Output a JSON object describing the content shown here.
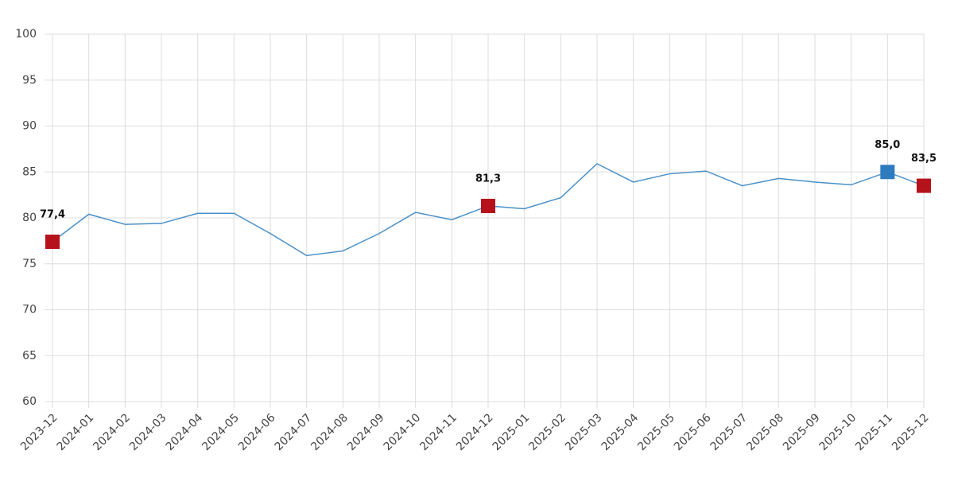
{
  "chart_data": {
    "type": "line",
    "categories": [
      "2023-12",
      "2024-01",
      "2024-02",
      "2024-03",
      "2024-04",
      "2024-05",
      "2024-06",
      "2024-07",
      "2024-08",
      "2024-09",
      "2024-10",
      "2024-11",
      "2024-12",
      "2025-01",
      "2025-02",
      "2025-03",
      "2025-04",
      "2025-05",
      "2025-06",
      "2025-07",
      "2025-08",
      "2025-09",
      "2025-10",
      "2025-11",
      "2025-12"
    ],
    "values": [
      77.4,
      80.4,
      79.3,
      79.4,
      80.5,
      80.5,
      78.3,
      75.9,
      76.4,
      78.3,
      80.6,
      79.8,
      81.3,
      81.0,
      82.2,
      85.9,
      83.9,
      84.8,
      85.1,
      83.5,
      84.3,
      83.9,
      83.6,
      85.0,
      83.5
    ],
    "value_labels": [
      "77,4",
      null,
      null,
      null,
      null,
      null,
      null,
      null,
      null,
      null,
      null,
      null,
      "81,3",
      null,
      null,
      null,
      null,
      null,
      null,
      null,
      null,
      null,
      null,
      "85,0",
      "83,5"
    ],
    "marker_colors": [
      "#b5121b",
      null,
      null,
      null,
      null,
      null,
      null,
      null,
      null,
      null,
      null,
      null,
      "#b5121b",
      null,
      null,
      null,
      null,
      null,
      null,
      null,
      null,
      null,
      null,
      "#2e7bbf",
      "#b5121b"
    ],
    "color": "#4a90c8",
    "ylim": [
      60,
      100
    ],
    "yticks": [
      60,
      65,
      70,
      75,
      80,
      85,
      90,
      95,
      100
    ],
    "grid": true
  }
}
